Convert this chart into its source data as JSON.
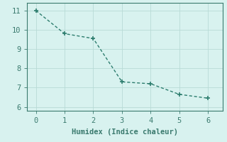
{
  "x": [
    0,
    1,
    2,
    3,
    4,
    5,
    6
  ],
  "y": [
    11.0,
    9.8,
    9.55,
    7.3,
    7.2,
    6.65,
    6.45
  ],
  "line_color": "#2d7d6e",
  "marker": "+",
  "marker_size": 5,
  "marker_linewidth": 1.2,
  "line_width": 1.0,
  "xlabel": "Humidex (Indice chaleur)",
  "xlabel_fontsize": 7.5,
  "background_color": "#d8f2ef",
  "grid_color": "#b8dbd6",
  "spine_color": "#3a7a6e",
  "xlim": [
    -0.3,
    6.5
  ],
  "ylim": [
    5.8,
    11.4
  ],
  "xticks": [
    0,
    1,
    2,
    3,
    4,
    5,
    6
  ],
  "yticks": [
    6,
    7,
    8,
    9,
    10,
    11
  ],
  "tick_fontsize": 7.5
}
